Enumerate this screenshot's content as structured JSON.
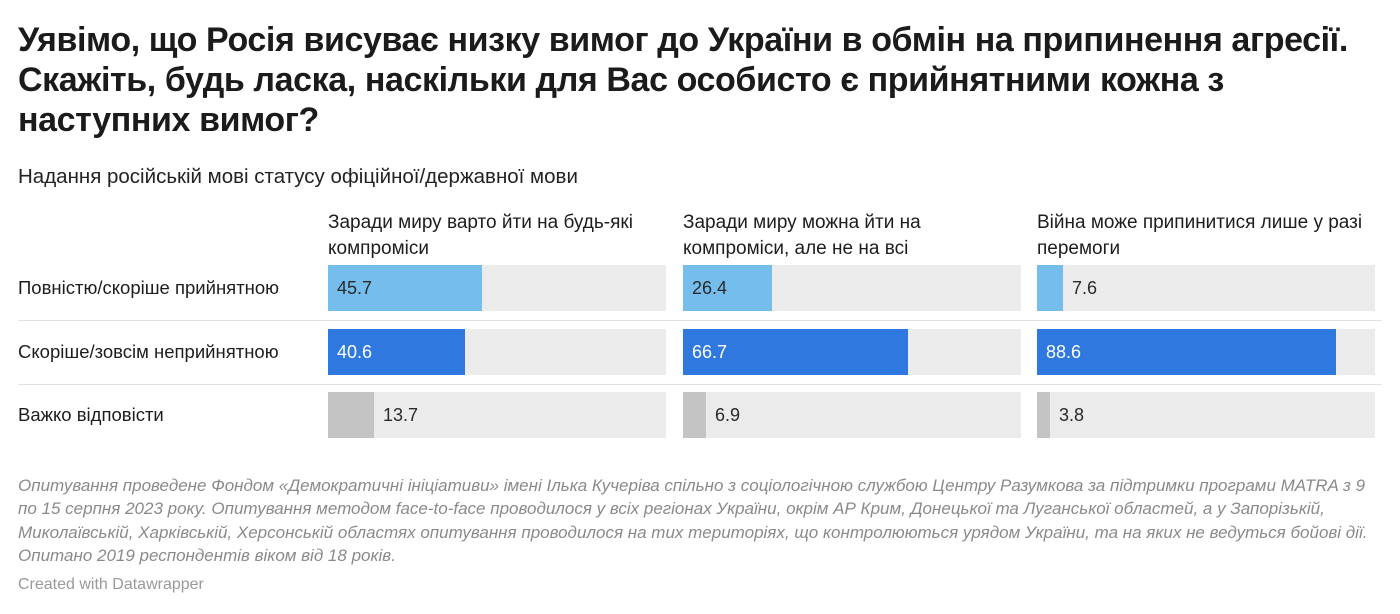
{
  "title": "Уявімо, що Росія висуває низку вимог до України в обмін на припинення агресії. Скажіть, будь ласка, наскільки для Вас особисто є прийнятними кожна з наступних вимог?",
  "subtitle": "Надання російській мові статусу офіційної/державної мови",
  "notes": "Опитування проведене Фондом «Демократичні ініціативи» імені Ілька Кучеріва спільно з соціологічною службою Центру Разумкова за підтримки програми MATRA з 9 по 15 серпня 2023 року. Опитування методом face-to-face проводилося у всіх регіонах України, окрім АР Крим, Донецької та Луганської областей, а у Запорізькій, Миколаївській, Харківській, Херсонській областях опитування проводилося на тих територіях, що контролюються урядом України, та на яких не ведуться бойові дії. Опитано 2019 респондентів віком від 18 років.",
  "credit": "Created with Datawrapper",
  "colors": {
    "light_blue": "#74bdec",
    "blue": "#2f78e0",
    "gray": "#c4c4c4",
    "track": "#ebebeb"
  },
  "chart_data": {
    "type": "bar",
    "orientation": "horizontal",
    "title": "Уявімо, що Росія висуває низку вимог до України в обмін на припинення агресії. Скажіть, будь ласка, наскільки для Вас особисто є прийнятними кожна з наступних вимог?",
    "subtitle": "Надання російській мові статусу офіційної/державної мови",
    "xlim": [
      0,
      100
    ],
    "categories": [
      "Повністю/скоріше прийнятною",
      "Скоріше/зовсім неприйнятною",
      "Важко відповісти"
    ],
    "panels": [
      {
        "name": "Заради миру варто йти на будь-які компроміси",
        "values": [
          45.7,
          40.6,
          13.7
        ]
      },
      {
        "name": "Заради миру можна йти на компроміси, але не на всі",
        "values": [
          26.4,
          66.7,
          6.9
        ]
      },
      {
        "name": "Війна може припинитися лише у разі перемоги",
        "values": [
          7.6,
          88.6,
          3.8
        ]
      }
    ]
  }
}
